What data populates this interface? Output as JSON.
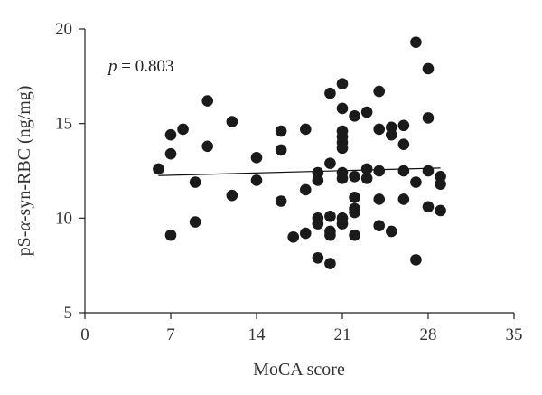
{
  "chart_data": {
    "type": "scatter",
    "title": "",
    "xlabel": "MoCA score",
    "ylabel_prefix": "pS-",
    "ylabel_symbol": "α",
    "ylabel_suffix": "-syn-RBC (ng/mg)",
    "xlim": [
      0,
      35
    ],
    "ylim": [
      5,
      20
    ],
    "xticks": [
      0,
      7,
      14,
      21,
      28,
      35
    ],
    "yticks": [
      5,
      10,
      15,
      20
    ],
    "annotation": {
      "p_symbol": "p",
      "p_text": " = 0.803"
    },
    "trendline": {
      "x": [
        6,
        29
      ],
      "y": [
        12.25,
        12.65
      ]
    },
    "points": [
      {
        "x": 6,
        "y": 12.6
      },
      {
        "x": 7,
        "y": 14.4
      },
      {
        "x": 7,
        "y": 13.4
      },
      {
        "x": 7,
        "y": 9.1
      },
      {
        "x": 8,
        "y": 14.7
      },
      {
        "x": 9,
        "y": 11.9
      },
      {
        "x": 9,
        "y": 9.8
      },
      {
        "x": 10,
        "y": 16.2
      },
      {
        "x": 10,
        "y": 13.8
      },
      {
        "x": 12,
        "y": 15.1
      },
      {
        "x": 12,
        "y": 11.2
      },
      {
        "x": 14,
        "y": 13.2
      },
      {
        "x": 14,
        "y": 12.0
      },
      {
        "x": 16,
        "y": 14.6
      },
      {
        "x": 16,
        "y": 13.6
      },
      {
        "x": 16,
        "y": 10.9
      },
      {
        "x": 17,
        "y": 9.0
      },
      {
        "x": 18,
        "y": 14.7
      },
      {
        "x": 18,
        "y": 11.5
      },
      {
        "x": 18,
        "y": 9.2
      },
      {
        "x": 19,
        "y": 12.4
      },
      {
        "x": 19,
        "y": 12.0
      },
      {
        "x": 19,
        "y": 10.0
      },
      {
        "x": 19,
        "y": 9.7
      },
      {
        "x": 19,
        "y": 7.9
      },
      {
        "x": 20,
        "y": 16.6
      },
      {
        "x": 20,
        "y": 12.9
      },
      {
        "x": 20,
        "y": 10.1
      },
      {
        "x": 20,
        "y": 9.3
      },
      {
        "x": 20,
        "y": 9.1
      },
      {
        "x": 20,
        "y": 7.6
      },
      {
        "x": 21,
        "y": 17.1
      },
      {
        "x": 21,
        "y": 15.8
      },
      {
        "x": 21,
        "y": 14.6
      },
      {
        "x": 21,
        "y": 14.3
      },
      {
        "x": 21,
        "y": 14.0
      },
      {
        "x": 21,
        "y": 13.7
      },
      {
        "x": 21,
        "y": 12.4
      },
      {
        "x": 21,
        "y": 12.1
      },
      {
        "x": 21,
        "y": 10.0
      },
      {
        "x": 21,
        "y": 9.7
      },
      {
        "x": 22,
        "y": 15.4
      },
      {
        "x": 22,
        "y": 12.2
      },
      {
        "x": 22,
        "y": 11.1
      },
      {
        "x": 22,
        "y": 10.5
      },
      {
        "x": 22,
        "y": 10.3
      },
      {
        "x": 22,
        "y": 9.1
      },
      {
        "x": 23,
        "y": 15.6
      },
      {
        "x": 23,
        "y": 12.6
      },
      {
        "x": 23,
        "y": 12.1
      },
      {
        "x": 24,
        "y": 16.7
      },
      {
        "x": 24,
        "y": 14.7
      },
      {
        "x": 24,
        "y": 12.5
      },
      {
        "x": 24,
        "y": 11.0
      },
      {
        "x": 24,
        "y": 9.6
      },
      {
        "x": 25,
        "y": 14.8
      },
      {
        "x": 25,
        "y": 14.4
      },
      {
        "x": 25,
        "y": 9.3
      },
      {
        "x": 26,
        "y": 14.9
      },
      {
        "x": 26,
        "y": 13.9
      },
      {
        "x": 26,
        "y": 12.5
      },
      {
        "x": 26,
        "y": 11.0
      },
      {
        "x": 27,
        "y": 19.3
      },
      {
        "x": 27,
        "y": 11.9
      },
      {
        "x": 27,
        "y": 7.8
      },
      {
        "x": 28,
        "y": 17.9
      },
      {
        "x": 28,
        "y": 15.3
      },
      {
        "x": 28,
        "y": 12.5
      },
      {
        "x": 28,
        "y": 10.6
      },
      {
        "x": 29,
        "y": 12.2
      },
      {
        "x": 29,
        "y": 11.8
      },
      {
        "x": 29,
        "y": 10.4
      }
    ]
  }
}
